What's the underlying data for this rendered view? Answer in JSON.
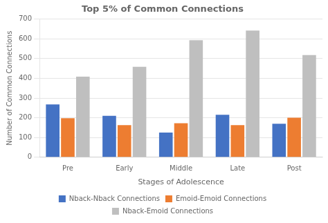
{
  "chart_data": {
    "type": "bar",
    "title": "Top 5% of Common Connections",
    "categories": [
      "Pre",
      "Early",
      "Middle",
      "Late",
      "Post"
    ],
    "series": [
      {
        "name": "Nback-Nback Connections",
        "color": "#4472C4",
        "values": [
          268,
          210,
          125,
          215,
          170
        ]
      },
      {
        "name": "Emoid-Emoid Connections",
        "color": "#ED7D31",
        "values": [
          198,
          163,
          172,
          163,
          200
        ]
      },
      {
        "name": "Nback-Emoid Connections",
        "color": "#BFBFBF",
        "values": [
          408,
          458,
          593,
          642,
          518
        ]
      }
    ],
    "xlabel": "Stages of Adolescence",
    "ylabel": "Number of Common Connections",
    "ylim": [
      0,
      700
    ],
    "yticks": [
      0,
      100,
      200,
      300,
      400,
      500,
      600,
      700
    ],
    "grid": true,
    "legend": "bottom"
  }
}
